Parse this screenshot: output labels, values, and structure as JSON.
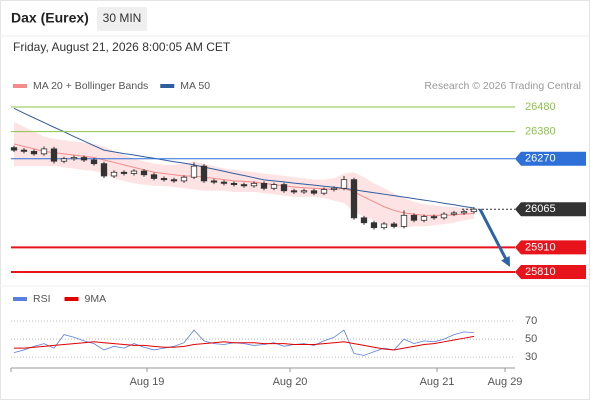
{
  "chart_data": {
    "type": "candlestick",
    "title": "Dax (Eurex)",
    "timeframe": "30 MIN",
    "subtitle": "Friday, August 21, 2026 8:00:05 AM CET",
    "credit": "Research © 2026 Trading Central",
    "xlim": [
      -0.2,
      50.1
    ],
    "ylim": [
      25757,
      26529
    ],
    "xticks": [
      {
        "value": 13.3,
        "label": "Aug 19"
      },
      {
        "value": 27.6,
        "label": "Aug 20"
      },
      {
        "value": 42.3,
        "label": "Aug 21"
      },
      {
        "value": 49.1,
        "label": "Aug 29"
      }
    ],
    "candles": [
      [
        26315,
        26323,
        26297,
        26305
      ],
      [
        26305,
        26313,
        26292,
        26300
      ],
      [
        26300,
        26308,
        26282,
        26290
      ],
      [
        26290,
        26320,
        26282,
        26310
      ],
      [
        26310,
        26318,
        26250,
        26260
      ],
      [
        26260,
        26278,
        26252,
        26270
      ],
      [
        26270,
        26283,
        26262,
        26275
      ],
      [
        26275,
        26283,
        26257,
        26265
      ],
      [
        26265,
        26273,
        26242,
        26250
      ],
      [
        26250,
        26258,
        26192,
        26200
      ],
      [
        26200,
        26223,
        26192,
        26215
      ],
      [
        26215,
        26223,
        26202,
        26210
      ],
      [
        26210,
        26228,
        26202,
        26220
      ],
      [
        26220,
        26228,
        26197,
        26205
      ],
      [
        26205,
        26213,
        26182,
        26190
      ],
      [
        26190,
        26198,
        26177,
        26185
      ],
      [
        26185,
        26193,
        26172,
        26180
      ],
      [
        26180,
        26203,
        26172,
        26195
      ],
      [
        26195,
        26255,
        26187,
        26240
      ],
      [
        26240,
        26248,
        26172,
        26180
      ],
      [
        26180,
        26188,
        26167,
        26175
      ],
      [
        26175,
        26183,
        26162,
        26170
      ],
      [
        26170,
        26178,
        26157,
        26165
      ],
      [
        26165,
        26173,
        26152,
        26160
      ],
      [
        26160,
        26178,
        26152,
        26170
      ],
      [
        26170,
        26178,
        26142,
        26150
      ],
      [
        26150,
        26173,
        26142,
        26165
      ],
      [
        26165,
        26173,
        26132,
        26140
      ],
      [
        26140,
        26148,
        26127,
        26135
      ],
      [
        26135,
        26148,
        26127,
        26140
      ],
      [
        26140,
        26148,
        26122,
        26130
      ],
      [
        26130,
        26153,
        26122,
        26145
      ],
      [
        26145,
        26158,
        26137,
        26150
      ],
      [
        26150,
        26200,
        26142,
        26185
      ],
      [
        26185,
        26193,
        26022,
        26030
      ],
      [
        26030,
        26038,
        26002,
        26010
      ],
      [
        26010,
        26018,
        25982,
        25990
      ],
      [
        25990,
        26013,
        25982,
        26005
      ],
      [
        26005,
        26013,
        25987,
        25995
      ],
      [
        25995,
        26060,
        25987,
        26040
      ],
      [
        26040,
        26048,
        26012,
        26020
      ],
      [
        26020,
        26043,
        26012,
        26035
      ],
      [
        26035,
        26043,
        26022,
        26030
      ],
      [
        26030,
        26053,
        26022,
        26045
      ],
      [
        26045,
        26058,
        26037,
        26050
      ],
      [
        26050,
        26063,
        26042,
        26055
      ],
      [
        26055,
        26073,
        26047,
        26065
      ]
    ],
    "indicators": [
      {
        "name": "MA 20 + Bollinger Bands",
        "color": "#f48a8a",
        "band_color": "#fde3e3",
        "values": [
          26330,
          26320,
          26310,
          26300,
          26295,
          26290,
          26285,
          26280,
          26275,
          26265,
          26255,
          26245,
          26235,
          26225,
          26215,
          26210,
          26205,
          26200,
          26200,
          26195,
          26190,
          26185,
          26180,
          26178,
          26175,
          26170,
          26165,
          26160,
          26155,
          26152,
          26150,
          26148,
          26145,
          26150,
          26135,
          26115,
          26095,
          26075,
          26060,
          26050,
          26045,
          26040,
          26040,
          26040,
          26042,
          26045,
          26048
        ],
        "upper": [
          26420,
          26400,
          26380,
          26360,
          26350,
          26345,
          26340,
          26335,
          26330,
          26320,
          26300,
          26285,
          26270,
          26260,
          26250,
          26245,
          26245,
          26250,
          26260,
          26250,
          26240,
          26230,
          26225,
          26220,
          26215,
          26210,
          26205,
          26200,
          26195,
          26190,
          26185,
          26185,
          26190,
          26210,
          26215,
          26195,
          26170,
          26150,
          26130,
          26110,
          26095,
          26085,
          26080,
          26075,
          26075,
          26070,
          26070
        ],
        "lower": [
          26240,
          26240,
          26240,
          26240,
          26240,
          26235,
          26230,
          26225,
          26220,
          26210,
          26190,
          26180,
          26170,
          26165,
          26160,
          26160,
          26155,
          26150,
          26145,
          26140,
          26140,
          26140,
          26135,
          26135,
          26135,
          26130,
          26125,
          26120,
          26115,
          26115,
          26115,
          26110,
          26100,
          26090,
          26055,
          26035,
          26020,
          26000,
          25990,
          25990,
          25995,
          25995,
          26000,
          26005,
          26010,
          26020,
          26026
        ]
      },
      {
        "name": "MA 50",
        "color": "#2f5d9e",
        "values": [
          26475,
          26455,
          26436,
          26417,
          26398,
          26380,
          26360,
          26342,
          26323,
          26305,
          26298,
          26291,
          26285,
          26278,
          26272,
          26265,
          26258,
          26252,
          26245,
          26236,
          26228,
          26219,
          26210,
          26202,
          26193,
          26184,
          26180,
          26176,
          26171,
          26167,
          26163,
          26158,
          26154,
          26150,
          26144,
          26138,
          26132,
          26126,
          26120,
          26114,
          26108,
          26102,
          26096,
          26089,
          26083,
          26076,
          26070
        ]
      }
    ],
    "levels": [
      {
        "value": 26480,
        "color": "#8bc34a",
        "style": "text"
      },
      {
        "value": 26380,
        "color": "#8bc34a",
        "style": "text"
      },
      {
        "value": 26270,
        "color": "#2f6fd8",
        "style": "box"
      },
      {
        "value": 26065,
        "color": "#333333",
        "style": "last"
      },
      {
        "value": 25910,
        "color": "#e8141c",
        "style": "box"
      },
      {
        "value": 25810,
        "color": "#e8141c",
        "style": "box"
      }
    ],
    "projection": {
      "from": {
        "x": 46.6,
        "y": 26065
      },
      "to": {
        "x": 49.6,
        "y": 25830
      },
      "color": "#2d62a8"
    },
    "rsi": {
      "ylim": [
        18,
        80
      ],
      "yticks": [
        70,
        50,
        30
      ],
      "series": [
        {
          "name": "RSI",
          "color": "#5b7fe0",
          "values": [
            35,
            38,
            42,
            45,
            40,
            55,
            52,
            48,
            45,
            38,
            42,
            40,
            45,
            41,
            38,
            40,
            42,
            46,
            60,
            48,
            45,
            44,
            46,
            45,
            43,
            44,
            46,
            42,
            44,
            45,
            43,
            48,
            52,
            60,
            34,
            32,
            36,
            40,
            38,
            50,
            45,
            48,
            47,
            50,
            55,
            58,
            57
          ]
        },
        {
          "name": "9MA",
          "color": "#e00000",
          "values": [
            40,
            40,
            41,
            42,
            43,
            44,
            45,
            46,
            47,
            46,
            45,
            44,
            43,
            43,
            42,
            41,
            41,
            42,
            44,
            45,
            46,
            47,
            46,
            46,
            46,
            45,
            45,
            45,
            44,
            44,
            44,
            45,
            46,
            47,
            45,
            43,
            41,
            39,
            38,
            40,
            42,
            44,
            45,
            47,
            49,
            51,
            53
          ]
        }
      ]
    }
  }
}
